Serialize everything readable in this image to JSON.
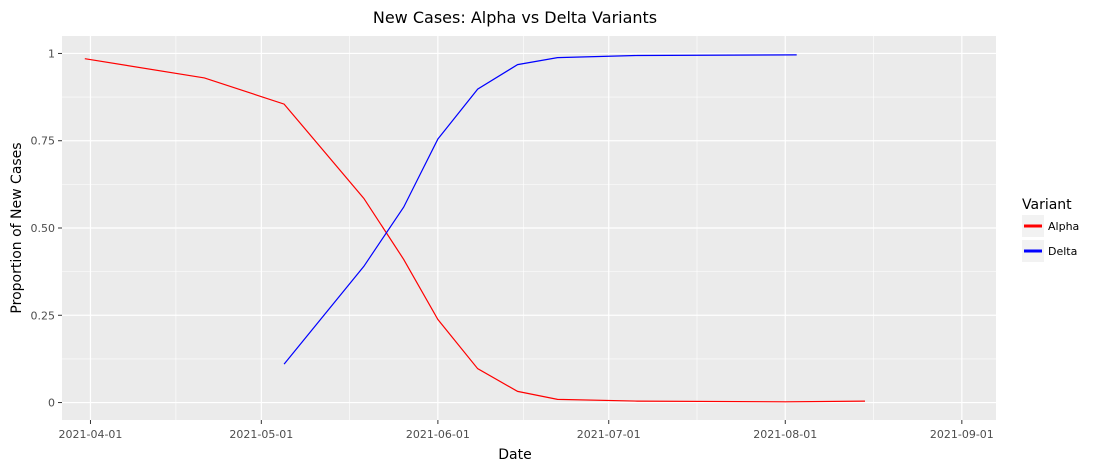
{
  "chart_data": {
    "type": "line",
    "title": "New Cases: Alpha vs Delta Variants",
    "xlabel": "Date",
    "ylabel": "Proportion of New Cases",
    "x_type": "date",
    "xlim": [
      "2021-03-27",
      "2021-09-07"
    ],
    "ylim": [
      -0.05,
      1.05
    ],
    "x_ticks": [
      "2021-04-01",
      "2021-05-01",
      "2021-06-01",
      "2021-07-01",
      "2021-08-01",
      "2021-09-01"
    ],
    "y_ticks": [
      0,
      0.25,
      0.5,
      0.75,
      1
    ],
    "y_tick_labels": [
      "0",
      "0.25",
      "0.50",
      "0.75",
      "1"
    ],
    "grid": true,
    "legend": {
      "title": "Variant",
      "position": "right"
    },
    "series": [
      {
        "name": "Alpha",
        "color": "#ff0000",
        "points": [
          {
            "x": "2021-03-31",
            "y": 0.985
          },
          {
            "x": "2021-04-21",
            "y": 0.93
          },
          {
            "x": "2021-05-05",
            "y": 0.855
          },
          {
            "x": "2021-05-19",
            "y": 0.585
          },
          {
            "x": "2021-05-26",
            "y": 0.41
          },
          {
            "x": "2021-06-01",
            "y": 0.238
          },
          {
            "x": "2021-06-08",
            "y": 0.097
          },
          {
            "x": "2021-06-15",
            "y": 0.032
          },
          {
            "x": "2021-06-22",
            "y": 0.009
          },
          {
            "x": "2021-07-06",
            "y": 0.004
          },
          {
            "x": "2021-08-01",
            "y": 0.002
          },
          {
            "x": "2021-08-15",
            "y": 0.004
          }
        ]
      },
      {
        "name": "Delta",
        "color": "#0000ff",
        "points": [
          {
            "x": "2021-05-05",
            "y": 0.11
          },
          {
            "x": "2021-05-19",
            "y": 0.39
          },
          {
            "x": "2021-05-26",
            "y": 0.56
          },
          {
            "x": "2021-06-01",
            "y": 0.755
          },
          {
            "x": "2021-06-08",
            "y": 0.898
          },
          {
            "x": "2021-06-15",
            "y": 0.968
          },
          {
            "x": "2021-06-22",
            "y": 0.988
          },
          {
            "x": "2021-07-06",
            "y": 0.994
          },
          {
            "x": "2021-08-03",
            "y": 0.996
          }
        ]
      }
    ]
  }
}
